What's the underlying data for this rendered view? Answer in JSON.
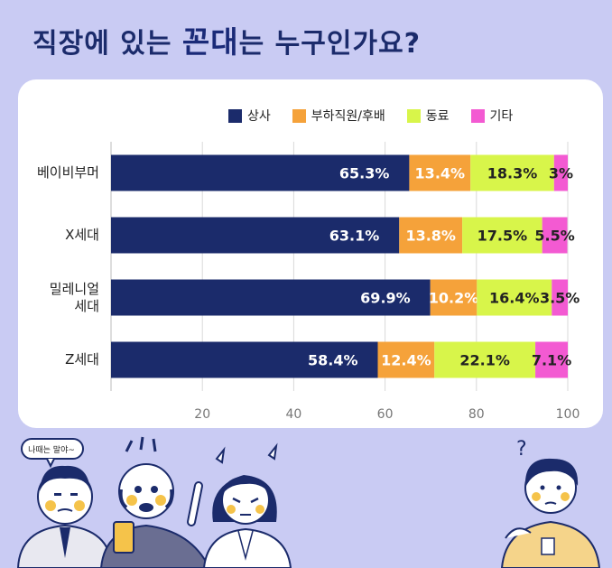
{
  "title": {
    "pre": "직장에 있는 ",
    "highlight": "꼰대",
    "post": "는 누구인가요?"
  },
  "legend": [
    "상사",
    "부하직원/후배",
    "동료",
    "기타"
  ],
  "bubble_text": "나때는 말야~",
  "chart_data": {
    "type": "bar",
    "orientation": "horizontal",
    "stacked": true,
    "title": "직장에 있는 꼰대는 누구인가요?",
    "categories": [
      [
        "베이비부머"
      ],
      [
        "X세대"
      ],
      [
        "밀레니얼",
        "세대"
      ],
      [
        "Z세대"
      ]
    ],
    "series": [
      {
        "name": "상사",
        "color": "#1b2b6b",
        "label_color": "#ffffff",
        "values": [
          65.3,
          63.1,
          69.9,
          58.4
        ],
        "labels": [
          "65.3%",
          "63.1%",
          "69.9%",
          "58.4%"
        ]
      },
      {
        "name": "부하직원/후배",
        "color": "#f5a23a",
        "label_color": "#ffffff",
        "values": [
          13.4,
          13.8,
          10.2,
          12.4
        ],
        "labels": [
          "13.4%",
          "13.8%",
          "10.2%",
          "12.4%"
        ]
      },
      {
        "name": "동료",
        "color": "#d8f54a",
        "label_color": "#222222",
        "values": [
          18.3,
          17.5,
          16.4,
          22.1
        ],
        "labels": [
          "18.3%",
          "17.5%",
          "16.4%",
          "22.1%"
        ]
      },
      {
        "name": "기타",
        "color": "#f35ad2",
        "label_color": "#222222",
        "values": [
          3,
          5.5,
          3.5,
          7.1
        ],
        "labels": [
          "3%",
          "5.5%",
          "3.5%",
          "7.1%"
        ]
      }
    ],
    "xlim": [
      0,
      100
    ],
    "xticks": [
      20,
      40,
      60,
      80,
      100
    ],
    "xtick_labels": [
      "20",
      "40",
      "60",
      "80",
      "100"
    ]
  }
}
